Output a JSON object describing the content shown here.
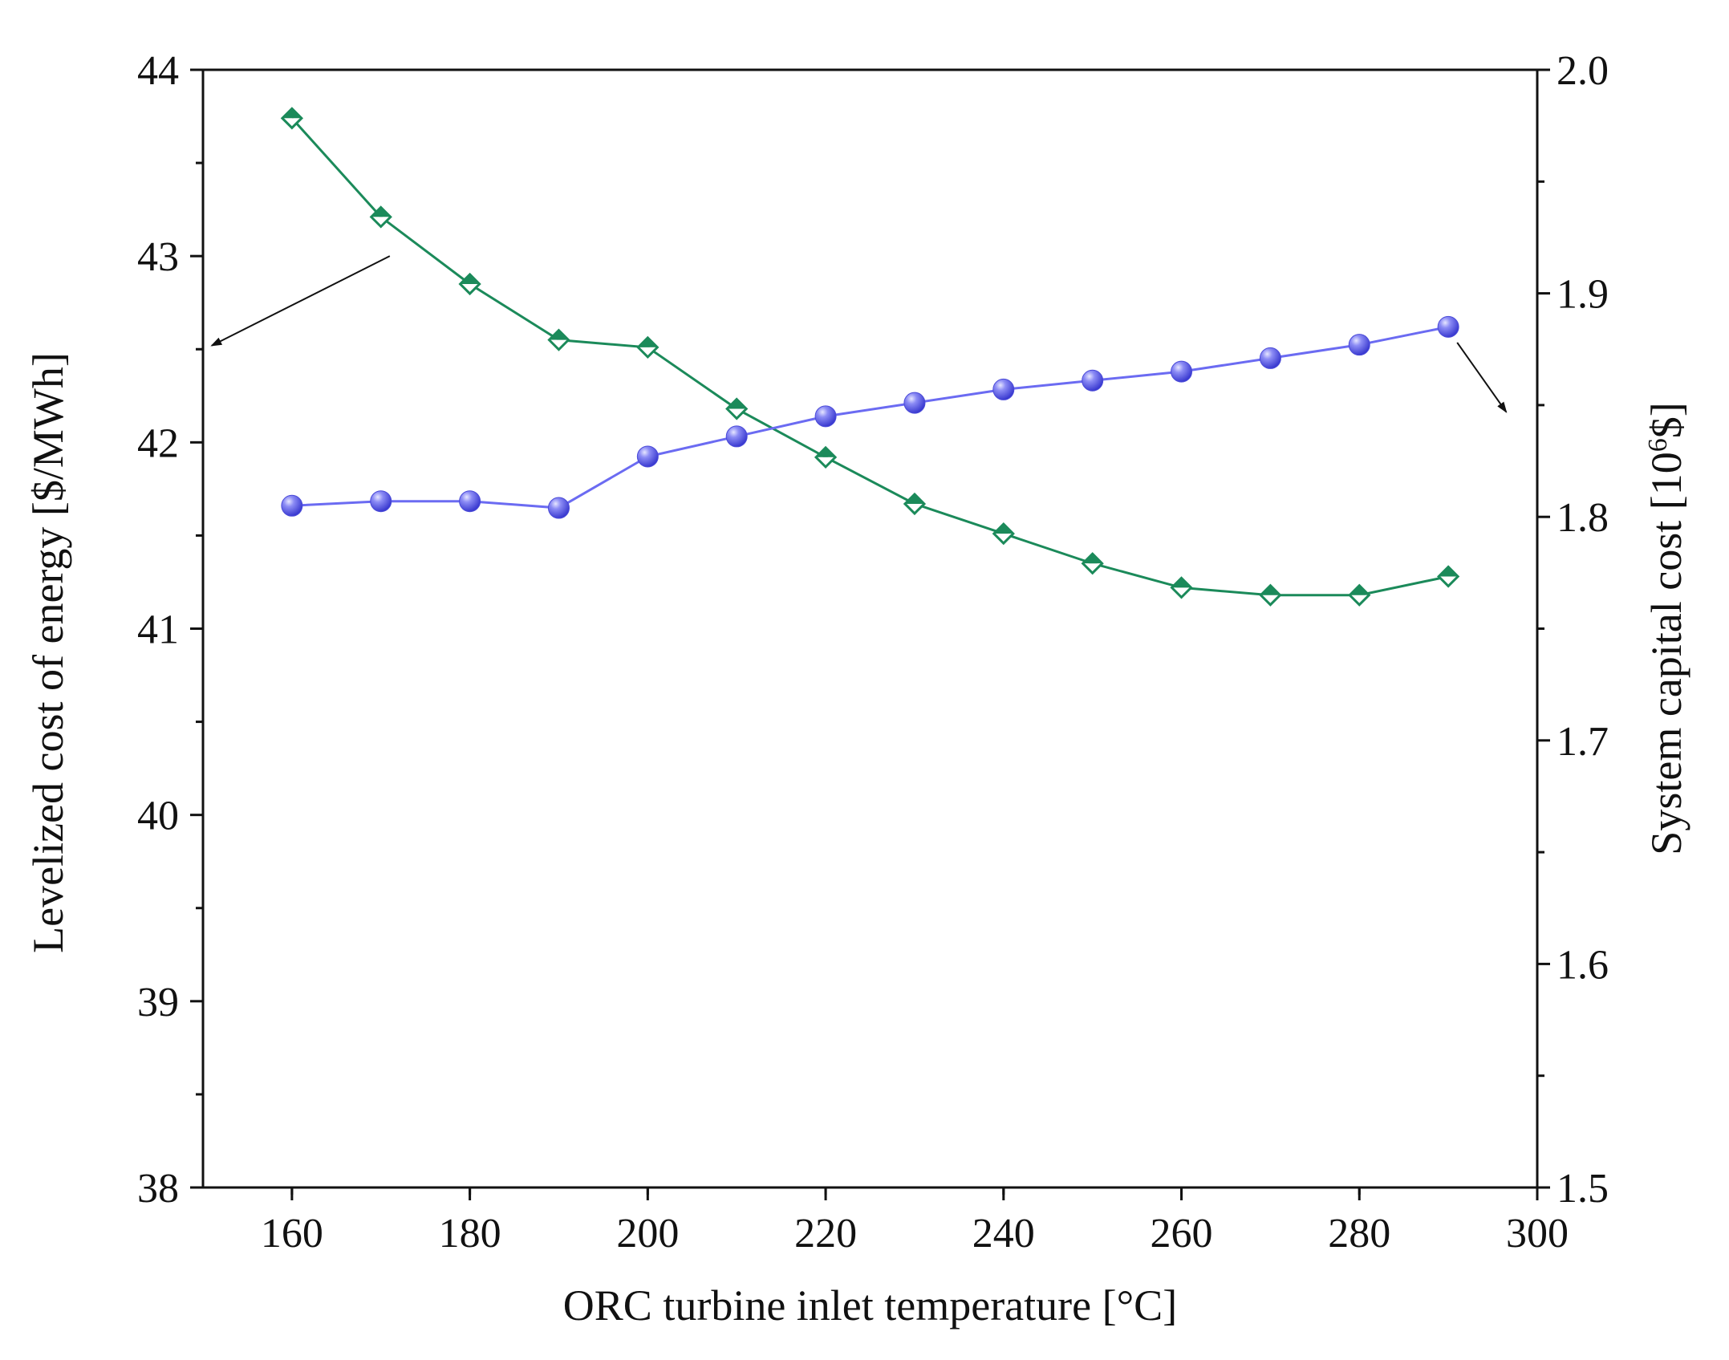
{
  "chart_data": {
    "type": "line",
    "xlabel": "ORC turbine inlet temperature [°C]",
    "ylabel_left": "Levelized cost of energy [$/MWh]",
    "ylabel_right": "System capital cost [10",
    "ylabel_right_sup": "6",
    "ylabel_right_end": "$]",
    "xlim": [
      150,
      300
    ],
    "ylim_left": [
      38,
      44
    ],
    "ylim_right": [
      1.5,
      2.0
    ],
    "x_ticks": [
      160,
      180,
      200,
      220,
      240,
      260,
      280,
      300
    ],
    "y_left_ticks": [
      38,
      39,
      40,
      41,
      42,
      43,
      44
    ],
    "y_right_ticks": [
      "1.5",
      "1.6",
      "1.7",
      "1.8",
      "1.9",
      "2.0"
    ],
    "x": [
      160,
      170,
      180,
      190,
      200,
      210,
      220,
      230,
      240,
      250,
      260,
      270,
      280,
      290
    ],
    "series": [
      {
        "name": "Levelized cost of energy",
        "axis": "left",
        "color": "#1b8a5a",
        "marker": "half-filled-diamond",
        "values": [
          43.74,
          43.21,
          42.85,
          42.55,
          42.51,
          42.18,
          41.92,
          41.67,
          41.51,
          41.35,
          41.22,
          41.18,
          41.18,
          41.28
        ]
      },
      {
        "name": "System capital cost",
        "axis": "right",
        "color": "#6b6bf2",
        "marker": "sphere",
        "values": [
          1.805,
          1.807,
          1.807,
          1.804,
          1.827,
          1.836,
          1.845,
          1.851,
          1.857,
          1.861,
          1.865,
          1.871,
          1.877,
          1.885
        ]
      }
    ],
    "annotations": [
      {
        "text": "",
        "kind": "arrow",
        "points_to": "left axis",
        "from_x": 171,
        "from_y": 43.0,
        "to_x": 151,
        "to_y": 42.52
      },
      {
        "text": "",
        "kind": "arrow",
        "points_to": "right axis",
        "from_x": 291,
        "from_y": 1.878,
        "to_x": 296.5,
        "to_y": 1.847
      }
    ]
  }
}
